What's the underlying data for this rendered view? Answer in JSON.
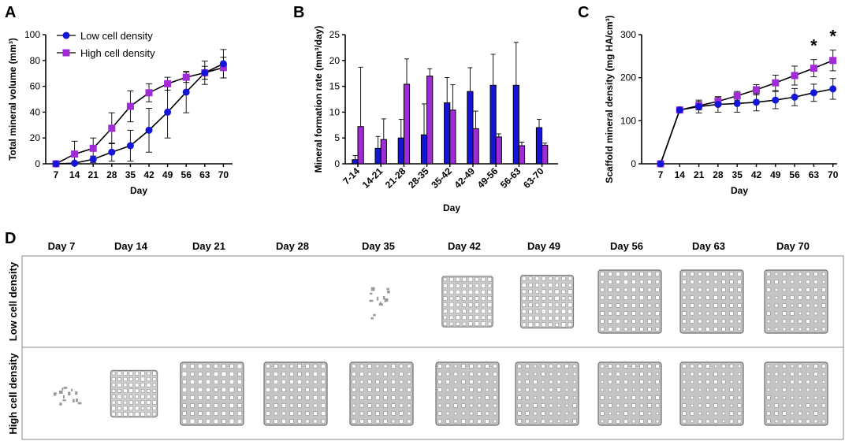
{
  "colors": {
    "low": "#1515d8",
    "high": "#a12bd6",
    "axis": "#000000",
    "grid_border": "#8a8a8a",
    "scaffold": "#b8b8b8"
  },
  "chart_data": [
    {
      "panel": "A",
      "type": "line",
      "xlabel": "Day",
      "ylabel": "Total mineral volume (mm³)",
      "categories": [
        "7",
        "14",
        "21",
        "28",
        "35",
        "42",
        "49",
        "56",
        "63",
        "70"
      ],
      "ylim": [
        0,
        100
      ],
      "yticks": [
        0,
        20,
        40,
        60,
        80,
        100
      ],
      "legend": "top-left",
      "series": [
        {
          "name": "Low cell density",
          "marker": "circle",
          "values": [
            0,
            0.5,
            3.5,
            9,
            14,
            26,
            40,
            55.5,
            70.5,
            77.5
          ],
          "errors": [
            0,
            0.5,
            2.5,
            7,
            12,
            17,
            20,
            16,
            9,
            11
          ]
        },
        {
          "name": "High cell density",
          "marker": "square",
          "values": [
            0,
            7.5,
            12,
            27.5,
            44.5,
            55,
            62,
            67,
            70.5,
            74.5
          ],
          "errors": [
            0,
            10,
            8,
            12,
            12,
            7,
            5,
            4,
            5,
            8
          ]
        }
      ]
    },
    {
      "panel": "B",
      "type": "bar",
      "xlabel": "Day",
      "ylabel": "Mineral formation rate (mm³/day)",
      "categories": [
        "7-14",
        "14-21",
        "21-28",
        "28-35",
        "35-42",
        "42-49",
        "49-56",
        "56-63",
        "63-70"
      ],
      "ylim": [
        0,
        25
      ],
      "yticks": [
        0,
        5,
        10,
        15,
        20,
        25
      ],
      "series": [
        {
          "name": "Low cell density",
          "values": [
            0.8,
            3,
            5,
            5.6,
            11.8,
            14,
            15.2,
            15.2,
            7
          ],
          "errors": [
            0.8,
            2.3,
            3.6,
            6,
            4.9,
            4.6,
            6,
            8.3,
            1.6
          ]
        },
        {
          "name": "High cell density",
          "values": [
            7.2,
            4.7,
            15.4,
            17,
            10.4,
            6.8,
            5.2,
            3.5,
            3.6
          ],
          "errors": [
            11.5,
            4,
            4.9,
            1.4,
            4.9,
            3.4,
            0.6,
            0.7,
            0.4
          ]
        }
      ]
    },
    {
      "panel": "C",
      "type": "line",
      "xlabel": "Day",
      "ylabel": "Scaffold mineral density (mg HA/cm³)",
      "categories": [
        "7",
        "14",
        "21",
        "28",
        "35",
        "42",
        "49",
        "56",
        "63",
        "70"
      ],
      "ylim": [
        0,
        300
      ],
      "yticks": [
        0,
        100,
        200,
        300
      ],
      "annotations": [
        {
          "x": "63",
          "text": "*"
        },
        {
          "x": "70",
          "text": "*"
        }
      ],
      "series": [
        {
          "name": "Low cell density",
          "marker": "circle",
          "values": [
            0,
            125,
            133,
            138,
            140,
            143,
            148,
            155,
            165,
            174
          ],
          "errors": [
            0,
            4,
            15,
            18,
            20,
            20,
            20,
            20,
            20,
            24
          ]
        },
        {
          "name": "High cell density",
          "marker": "square",
          "values": [
            0,
            125,
            135,
            145,
            158,
            172,
            188,
            205,
            222,
            240
          ],
          "errors": [
            0,
            4,
            10,
            10,
            10,
            12,
            18,
            22,
            20,
            24
          ]
        }
      ]
    }
  ],
  "panel_labels": {
    "a": "A",
    "b": "B",
    "c": "C",
    "d": "D"
  },
  "panel_d": {
    "days": [
      "Day 7",
      "Day 14",
      "Day 21",
      "Day 28",
      "Day 35",
      "Day 42",
      "Day 49",
      "Day 56",
      "Day 63",
      "Day 70"
    ],
    "rows": [
      {
        "label": "Low cell density",
        "coverage": [
          0,
          0,
          0,
          0,
          0.25,
          0.7,
          0.75,
          1,
          1,
          1
        ],
        "fill": [
          0,
          0,
          0,
          0,
          0,
          0.1,
          0.15,
          0.5,
          0.6,
          0.65
        ]
      },
      {
        "label": "High cell density",
        "coverage": [
          0.15,
          0.6,
          1,
          1,
          1,
          1,
          1,
          1,
          1,
          1
        ],
        "fill": [
          0,
          0.05,
          0.35,
          0.5,
          0.6,
          0.65,
          0.7,
          0.7,
          0.75,
          0.75
        ]
      }
    ]
  }
}
